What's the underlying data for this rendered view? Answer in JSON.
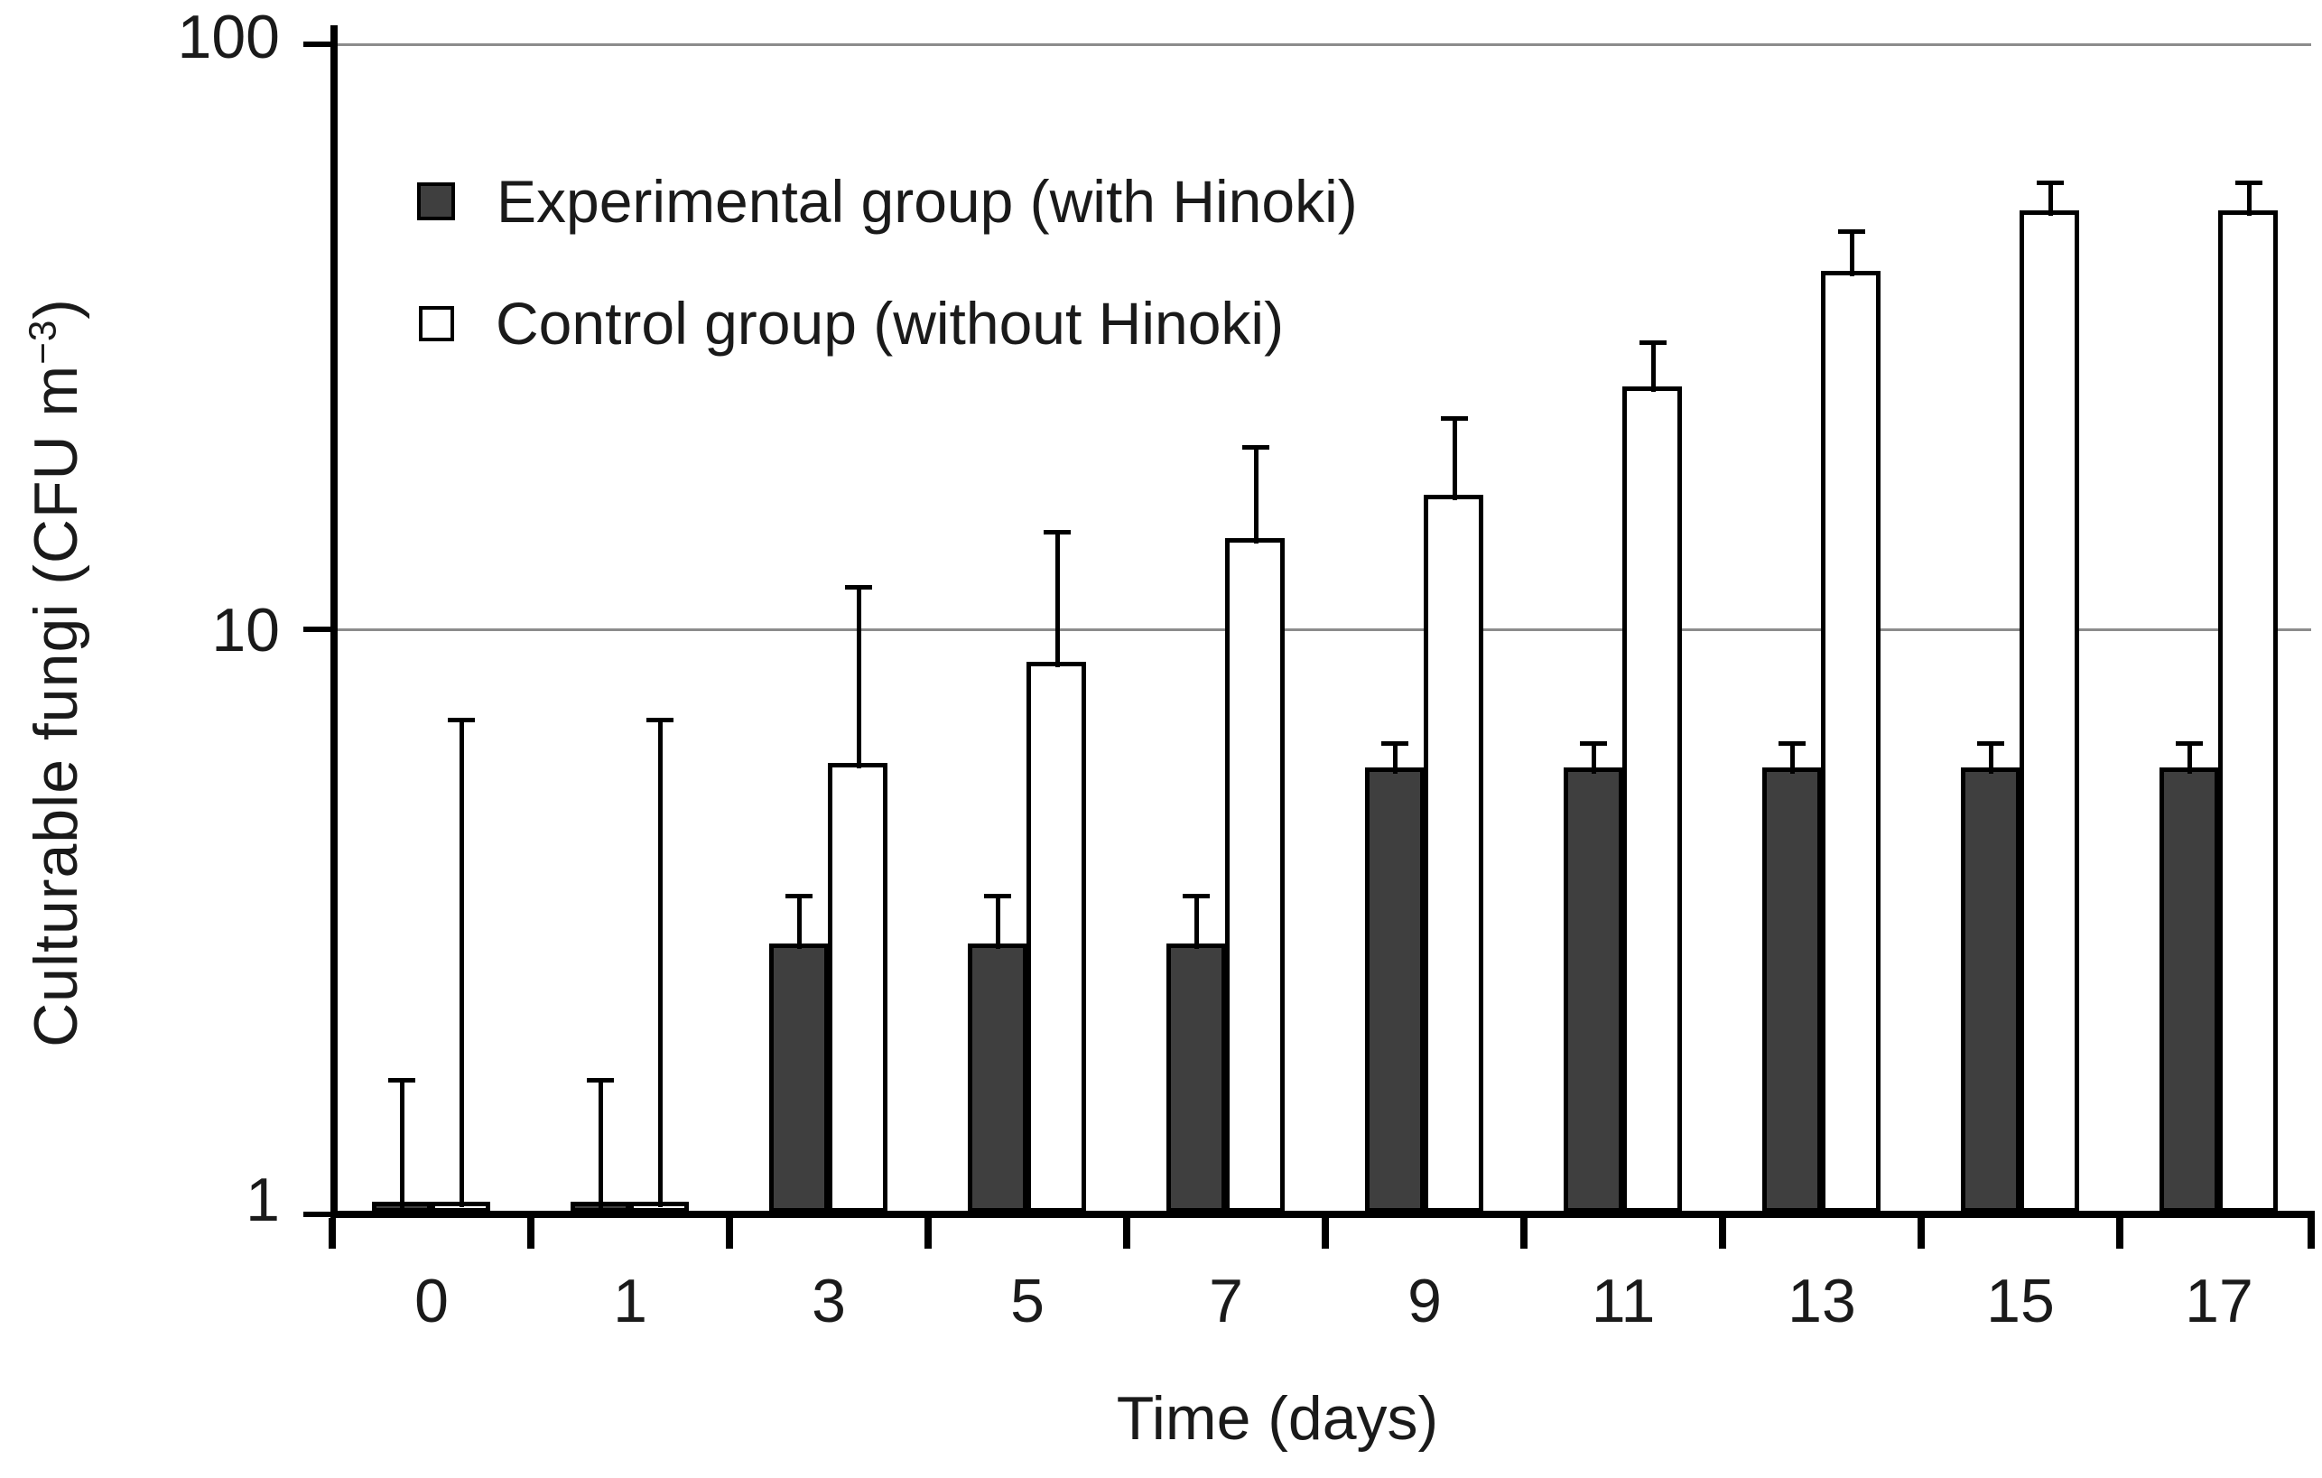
{
  "figure": {
    "background": "#ffffff",
    "text_color": "#1a1a1a"
  },
  "chart_data": {
    "type": "bar",
    "title": "",
    "xlabel": "Time (days)",
    "ylabel": {
      "prefix": "Culturable fungi (CFU m",
      "superscript": "−3",
      "suffix": ")"
    },
    "y_scale": "log",
    "ylim": [
      1,
      100
    ],
    "y_ticks": [
      {
        "label": "1",
        "value": 1
      },
      {
        "label": "10",
        "value": 10
      },
      {
        "label": "100",
        "value": 100
      }
    ],
    "grid": {
      "horizontal_lines_at": [
        10,
        100
      ],
      "color": "#8c8c8c"
    },
    "categories": [
      "0",
      "1",
      "3",
      "5",
      "7",
      "9",
      "11",
      "13",
      "15",
      "17"
    ],
    "series": [
      {
        "name": "Experimental group (with Hinoki)",
        "fill": "#3f3f3f",
        "border": "#000000",
        "values": [
          1.05,
          1.05,
          2.9,
          2.9,
          2.9,
          5.8,
          5.8,
          5.8,
          5.8,
          5.8
        ],
        "error_upper": [
          1.7,
          1.7,
          3.5,
          3.5,
          3.5,
          6.4,
          6.4,
          6.4,
          6.4,
          6.4
        ]
      },
      {
        "name": "Control group (without Hinoki)",
        "fill": "#ffffff",
        "border": "#000000",
        "values": [
          1.05,
          1.05,
          5.9,
          8.8,
          14.3,
          17,
          26,
          41,
          52,
          52
        ],
        "error_upper": [
          7.0,
          7.0,
          11.8,
          14.7,
          20.5,
          23,
          31,
          48,
          58,
          58
        ]
      }
    ],
    "legend_position": "inside-top-left"
  }
}
